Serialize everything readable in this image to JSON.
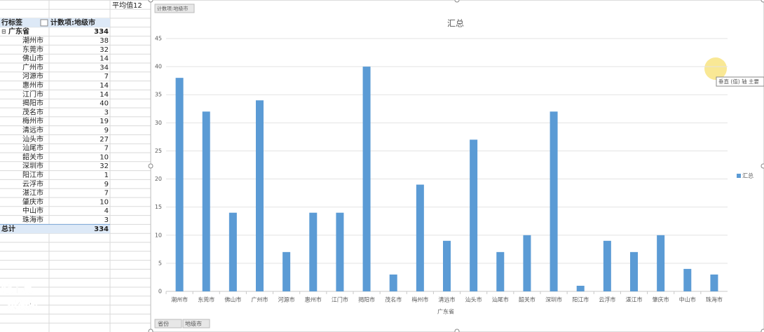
{
  "cell_note": "平均值12",
  "pivot_table": {
    "header": [
      "行标签",
      "计数项:地级市"
    ],
    "group": [
      "广东省",
      "334"
    ],
    "rows": [
      [
        "潮州市",
        "38"
      ],
      [
        "东莞市",
        "32"
      ],
      [
        "佛山市",
        "14"
      ],
      [
        "广州市",
        "34"
      ],
      [
        "河源市",
        "7"
      ],
      [
        "惠州市",
        "14"
      ],
      [
        "江门市",
        "14"
      ],
      [
        "揭阳市",
        "40"
      ],
      [
        "茂名市",
        "3"
      ],
      [
        "梅州市",
        "19"
      ],
      [
        "清远市",
        "9"
      ],
      [
        "汕头市",
        "27"
      ],
      [
        "汕尾市",
        "7"
      ],
      [
        "韶关市",
        "10"
      ],
      [
        "深圳市",
        "32"
      ],
      [
        "阳江市",
        "1"
      ],
      [
        "云浮市",
        "9"
      ],
      [
        "湛江市",
        "7"
      ],
      [
        "肇庆市",
        "10"
      ],
      [
        "中山市",
        "4"
      ],
      [
        "珠海市",
        "3"
      ]
    ],
    "total": [
      "总计",
      "334"
    ]
  },
  "chart_data": {
    "type": "bar",
    "field_button": "计数项:地级市",
    "title": "汇总",
    "x_label": "广东省",
    "categories": [
      "潮州市",
      "东莞市",
      "佛山市",
      "广州市",
      "河源市",
      "惠州市",
      "江门市",
      "揭阳市",
      "茂名市",
      "梅州市",
      "清远市",
      "汕头市",
      "汕尾市",
      "韶关市",
      "深圳市",
      "阳江市",
      "云浮市",
      "湛江市",
      "肇庆市",
      "中山市",
      "珠海市"
    ],
    "series": [
      {
        "name": "汇总",
        "color": "#5b9bd5",
        "values": [
          38,
          32,
          14,
          34,
          7,
          14,
          14,
          40,
          3,
          19,
          9,
          27,
          7,
          10,
          32,
          1,
          9,
          7,
          10,
          4,
          3
        ]
      }
    ],
    "ylim": [
      0,
      45
    ],
    "yticks": [
      0,
      5,
      10,
      15,
      20,
      25,
      30,
      35,
      40,
      45
    ],
    "grid": true,
    "legend": "right"
  },
  "axis_buttons": [
    "省份",
    "地级市"
  ],
  "tooltip": "垂直 (值) 轴 主要",
  "watermark": [
    "制工具",
    "录像机"
  ]
}
